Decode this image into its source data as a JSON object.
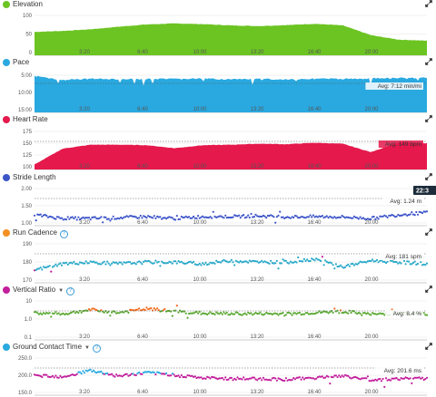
{
  "x_axis_labels": [
    "3:20",
    "6:40",
    "10:00",
    "13:20",
    "16:40",
    "20:00"
  ],
  "panels": [
    {
      "id": "elevation",
      "title": "Elevation",
      "title_extra": "",
      "has_help": false,
      "has_dropdown": false,
      "dot_color": "#6cc423",
      "plot_color": "#6cc423",
      "plot_type": "area",
      "y_ticks": [
        "100",
        "50",
        "0"
      ],
      "avg_label": "",
      "badge": ""
    },
    {
      "id": "pace",
      "title": "Pace",
      "title_extra": "",
      "has_help": false,
      "has_dropdown": false,
      "dot_color": "#29a9e0",
      "plot_color": "#29a9e0",
      "plot_type": "area",
      "y_ticks": [
        "5:00",
        "10:00",
        "15:00"
      ],
      "avg_label": "Avg: 7:12 min/mi",
      "badge": ""
    },
    {
      "id": "heart_rate",
      "title": "Heart Rate",
      "title_extra": "",
      "has_help": false,
      "has_dropdown": false,
      "dot_color": "#e5194c",
      "plot_color": "#e5194c",
      "plot_type": "area",
      "y_ticks": [
        "175",
        "150",
        "125",
        "100"
      ],
      "avg_label": "Avg: 149 bpm",
      "badge": ""
    },
    {
      "id": "stride_length",
      "title": "Stride Length",
      "title_extra": "",
      "has_help": false,
      "has_dropdown": false,
      "dot_color": "#3d55c9",
      "plot_color": "#3d55c9",
      "plot_type": "dots",
      "y_ticks": [
        "2.00",
        "1.50",
        "1.00"
      ],
      "avg_label": "Avg: 1.24 m",
      "badge": "22:3"
    },
    {
      "id": "run_cadence",
      "title": "Run Cadence",
      "title_extra": "",
      "has_help": true,
      "has_dropdown": false,
      "dot_color": "#f39021",
      "plot_color": "#29a9c9",
      "plot_type": "dots",
      "y_ticks": [
        "190",
        "180",
        "170"
      ],
      "avg_label": "Avg: 181 spm",
      "badge": ""
    },
    {
      "id": "vertical_ratio",
      "title": "Vertical Ratio",
      "title_extra": "",
      "has_help": true,
      "has_dropdown": true,
      "dot_color": "#c21f9c",
      "plot_color": "#5aa832",
      "plot_type": "dots",
      "y_ticks": [
        "10",
        "1.0",
        "0.1"
      ],
      "avg_label": "Avg: 8.4 %",
      "badge": ""
    },
    {
      "id": "ground_contact_time",
      "title": "Ground Contact Time",
      "title_extra": "",
      "has_help": true,
      "has_dropdown": true,
      "dot_color": "#29a9e0",
      "plot_color": "#c21f9c",
      "plot_type": "dots",
      "y_ticks": [
        "250.0",
        "200.0",
        "150.0"
      ],
      "avg_label": "Avg: 201.6 ms",
      "badge": ""
    }
  ],
  "chart_data": [
    {
      "type": "area",
      "title": "Elevation",
      "x": [
        "0:00",
        "1:40",
        "3:20",
        "5:00",
        "6:40",
        "8:20",
        "10:00",
        "11:40",
        "13:20",
        "15:00",
        "16:40",
        "18:20",
        "20:00",
        "21:40",
        "22:30"
      ],
      "series": [
        {
          "values": [
            72,
            75,
            80,
            88,
            95,
            98,
            96,
            92,
            90,
            93,
            97,
            92,
            62,
            48,
            45
          ]
        }
      ],
      "ylim": [
        0,
        120
      ]
    },
    {
      "type": "area",
      "title": "Pace",
      "x": [
        "0:00",
        "1:40",
        "3:20",
        "5:00",
        "6:40",
        "8:20",
        "10:00",
        "11:40",
        "13:20",
        "15:00",
        "16:40",
        "18:20",
        "20:00",
        "21:40",
        "22:30"
      ],
      "series": [
        {
          "values": [
            5.0,
            6.2,
            5.8,
            6.0,
            5.9,
            5.9,
            5.8,
            6.0,
            5.9,
            6.0,
            5.8,
            5.9,
            5.7,
            5.6,
            5.5
          ]
        }
      ],
      "ylim": [
        5,
        15
      ]
    },
    {
      "type": "area",
      "title": "Heart Rate",
      "x": [
        "0:00",
        "1:40",
        "3:20",
        "5:00",
        "6:40",
        "8:20",
        "10:00",
        "11:40",
        "13:20",
        "15:00",
        "16:40",
        "18:20",
        "20:00",
        "21:40",
        "22:30"
      ],
      "series": [
        {
          "values": [
            110,
            142,
            150,
            150,
            149,
            143,
            149,
            150,
            152,
            151,
            154,
            152,
            135,
            155,
            153
          ]
        }
      ],
      "ylim": [
        100,
        175
      ]
    },
    {
      "type": "scatter",
      "title": "Stride Length",
      "x": [
        "0:00",
        "1:40",
        "3:20",
        "5:00",
        "6:40",
        "8:20",
        "10:00",
        "11:40",
        "13:20",
        "15:00",
        "16:40",
        "18:20",
        "20:00",
        "21:40",
        "22:30"
      ],
      "series": [
        {
          "values": [
            1.3,
            1.2,
            1.2,
            1.22,
            1.25,
            1.2,
            1.25,
            1.25,
            1.27,
            1.24,
            1.25,
            1.24,
            1.2,
            1.3,
            1.36
          ]
        }
      ],
      "ylim": [
        1.0,
        2.0
      ]
    },
    {
      "type": "scatter",
      "title": "Run Cadence",
      "x": [
        "0:00",
        "1:40",
        "3:20",
        "5:00",
        "6:40",
        "8:20",
        "10:00",
        "11:40",
        "13:20",
        "15:00",
        "16:40",
        "18:20",
        "20:00",
        "21:40",
        "22:30"
      ],
      "series": [
        {
          "values": [
            176,
            180,
            181,
            180,
            181,
            181,
            180,
            182,
            181,
            181,
            183,
            178,
            182,
            181,
            180
          ]
        }
      ],
      "ylim": [
        168,
        192
      ]
    },
    {
      "type": "scatter",
      "title": "Vertical Ratio",
      "x": [
        "0:00",
        "1:40",
        "3:20",
        "5:00",
        "6:40",
        "8:20",
        "10:00",
        "11:40",
        "13:20",
        "15:00",
        "16:40",
        "18:20",
        "20:00",
        "21:40",
        "22:30"
      ],
      "series": [
        {
          "values": [
            8.5,
            8.2,
            9.5,
            8.6,
            9.8,
            9.0,
            8.4,
            8.3,
            8.3,
            8.2,
            8.6,
            9.0,
            8.1,
            8.4,
            8.3
          ]
        }
      ],
      "ylim": [
        0.1,
        12
      ]
    },
    {
      "type": "scatter",
      "title": "Ground Contact Time",
      "x": [
        "0:00",
        "1:40",
        "3:20",
        "5:00",
        "6:40",
        "8:20",
        "10:00",
        "11:40",
        "13:20",
        "15:00",
        "16:40",
        "18:20",
        "20:00",
        "21:40",
        "22:30"
      ],
      "series": [
        {
          "values": [
            212,
            206,
            225,
            208,
            218,
            212,
            202,
            200,
            200,
            198,
            203,
            208,
            196,
            200,
            200
          ]
        }
      ],
      "ylim": [
        150,
        260
      ]
    }
  ]
}
